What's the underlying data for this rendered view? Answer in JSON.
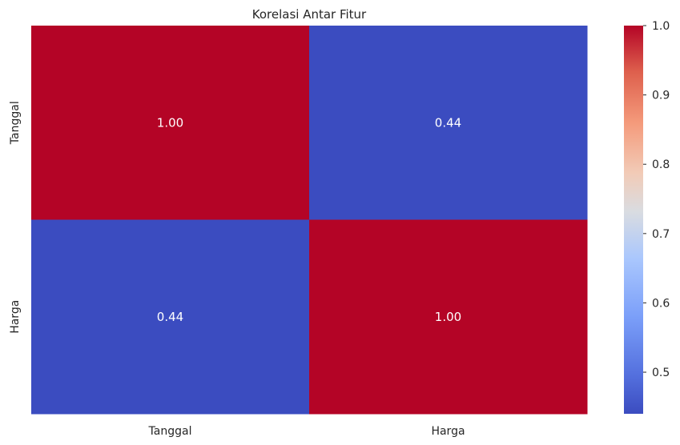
{
  "chart_data": {
    "type": "heatmap",
    "title": "Korelasi Antar Fitur",
    "x_labels": [
      "Tanggal",
      "Harga"
    ],
    "y_labels": [
      "Tanggal",
      "Harga"
    ],
    "matrix": [
      [
        1.0,
        0.44
      ],
      [
        0.44,
        1.0
      ]
    ],
    "cell_labels": [
      [
        "1.00",
        "0.44"
      ],
      [
        "0.44",
        "1.00"
      ]
    ],
    "colormap": "coolwarm",
    "colorbar": {
      "vmin": 0.44,
      "vmax": 1.0,
      "ticks": [
        0.5,
        0.6,
        0.7,
        0.8,
        0.9,
        1.0
      ],
      "tick_labels": [
        "0.5",
        "0.6",
        "0.7",
        "0.8",
        "0.9",
        "1.0"
      ],
      "position": "right"
    },
    "colors": {
      "low": "#3b4cc0",
      "mid": "#dddddd",
      "high": "#b40426"
    }
  }
}
